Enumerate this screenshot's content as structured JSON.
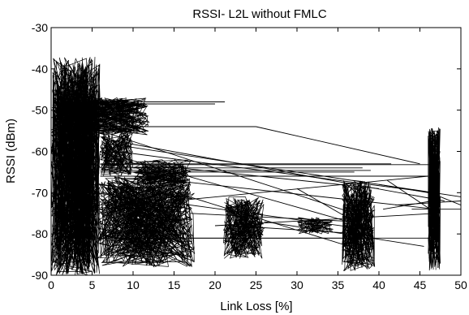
{
  "chart_data": {
    "type": "line",
    "title": "RSSI- L2L without FMLC",
    "xlabel": "Link Loss [%]",
    "ylabel": "RSSI (dBm)",
    "xlim": [
      0,
      50
    ],
    "ylim": [
      -90,
      -30
    ],
    "xticks": [
      0,
      5,
      10,
      15,
      20,
      25,
      30,
      35,
      40,
      45,
      50
    ],
    "yticks": [
      -90,
      -80,
      -70,
      -60,
      -50,
      -40,
      -30
    ],
    "xtick_labels": [
      "0",
      "5",
      "10",
      "15",
      "20",
      "25",
      "30",
      "35",
      "40",
      "45",
      "50"
    ],
    "ytick_labels": [
      "-90",
      "-80",
      "-70",
      "-60",
      "-50",
      "-40",
      "-30"
    ],
    "grid": false,
    "legend": "none",
    "line_color": "#000000",
    "series": [
      {
        "segments": [
          {
            "x": [
              0.3,
              21.2
            ],
            "y": [
              -48,
              -48
            ]
          },
          {
            "x": [
              0.5,
              20.0
            ],
            "y": [
              -48.5,
              -48.5
            ]
          },
          {
            "x": [
              6.5,
              25.0
            ],
            "y": [
              -54,
              -54
            ]
          },
          {
            "x": [
              6.0,
              41.5
            ],
            "y": [
              -63,
              -63
            ]
          },
          {
            "x": [
              6.0,
              38.0
            ],
            "y": [
              -64,
              -64
            ]
          },
          {
            "x": [
              6.0,
              37.0
            ],
            "y": [
              -65,
              -65
            ]
          },
          {
            "x": [
              6.0,
              46.5
            ],
            "y": [
              -63.2,
              -63.2
            ]
          },
          {
            "x": [
              6.0,
              39.0
            ],
            "y": [
              -64.6,
              -64.6
            ]
          },
          {
            "x": [
              0.5,
              38.0
            ],
            "y": [
              -81,
              -81
            ]
          },
          {
            "x": [
              16.5,
              47.0
            ],
            "y": [
              -81,
              -81
            ]
          },
          {
            "x": [
              6.0,
              46.0
            ],
            "y": [
              -66,
              -66
            ]
          },
          {
            "x": [
              25.0,
              45.0
            ],
            "y": [
              -54,
              -63
            ]
          },
          {
            "x": [
              6.5,
              25.0
            ],
            "y": [
              -54,
              -54
            ]
          },
          {
            "x": [
              6.0,
              38.0
            ],
            "y": [
              -60,
              -78
            ]
          },
          {
            "x": [
              6.5,
              48.0
            ],
            "y": [
              -57,
              -72
            ]
          },
          {
            "x": [
              6.5,
              50.0
            ],
            "y": [
              -58,
              -71
            ]
          },
          {
            "x": [
              6.0,
              40.0
            ],
            "y": [
              -62,
              -69
            ]
          },
          {
            "x": [
              6.0,
              38.5
            ],
            "y": [
              -55,
              -76
            ]
          },
          {
            "x": [
              8.0,
              46.5
            ],
            "y": [
              -60,
              -70
            ]
          },
          {
            "x": [
              6.0,
              39.0
            ],
            "y": [
              -70,
              -79
            ]
          },
          {
            "x": [
              10.0,
              47.0
            ],
            "y": [
              -66,
              -74
            ]
          },
          {
            "x": [
              12.0,
              38.0
            ],
            "y": [
              -68,
              -84
            ]
          },
          {
            "x": [
              15.0,
              46.0
            ],
            "y": [
              -72,
              -66
            ]
          },
          {
            "x": [
              17.0,
              37.0
            ],
            "y": [
              -75,
              -77
            ]
          },
          {
            "x": [
              20.0,
              47.0
            ],
            "y": [
              -78,
              -75
            ]
          },
          {
            "x": [
              22.0,
              38.0
            ],
            "y": [
              -78,
              -80
            ]
          },
          {
            "x": [
              26.0,
              45.5
            ],
            "y": [
              -77,
              -83
            ]
          },
          {
            "x": [
              30.0,
              37.0
            ],
            "y": [
              -69,
              -77
            ]
          },
          {
            "x": [
              40.0,
              46.0
            ],
            "y": [
              -68,
              -70
            ]
          },
          {
            "x": [
              40.5,
              46.5
            ],
            "y": [
              -74,
              -72
            ]
          },
          {
            "x": [
              41.0,
              47.0
            ],
            "y": [
              -67,
              -75
            ]
          },
          {
            "x": [
              42.0,
              50.0
            ],
            "y": [
              -73,
              -72
            ]
          },
          {
            "x": [
              44.0,
              50.0
            ],
            "y": [
              -74,
              -74
            ]
          },
          {
            "x": [
              47.5,
              50.0
            ],
            "y": [
              -71,
              -73
            ]
          }
        ],
        "dense_clusters": [
          {
            "x_range": [
              0.0,
              6.0
            ],
            "y_range": [
              -90,
              -37
            ],
            "count": 900
          },
          {
            "x_range": [
              0.0,
              12.0
            ],
            "y_range": [
              -56,
              -47
            ],
            "count": 350
          },
          {
            "x_range": [
              5.5,
              17.5
            ],
            "y_range": [
              -88,
              -66
            ],
            "count": 600
          },
          {
            "x_range": [
              6.0,
              10.0
            ],
            "y_range": [
              -66,
              -55
            ],
            "count": 180
          },
          {
            "x_range": [
              10.0,
              17.0
            ],
            "y_range": [
              -68,
              -62
            ],
            "count": 150
          },
          {
            "x_range": [
              21.0,
              26.0
            ],
            "y_range": [
              -86,
              -71
            ],
            "count": 260
          },
          {
            "x_range": [
              30.0,
              34.5
            ],
            "y_range": [
              -80,
              -76
            ],
            "count": 80
          },
          {
            "x_range": [
              35.5,
              39.5
            ],
            "y_range": [
              -89,
              -67
            ],
            "count": 320
          },
          {
            "x_range": [
              46.0,
              47.5
            ],
            "y_range": [
              -89,
              -54
            ],
            "count": 280
          }
        ]
      }
    ]
  }
}
